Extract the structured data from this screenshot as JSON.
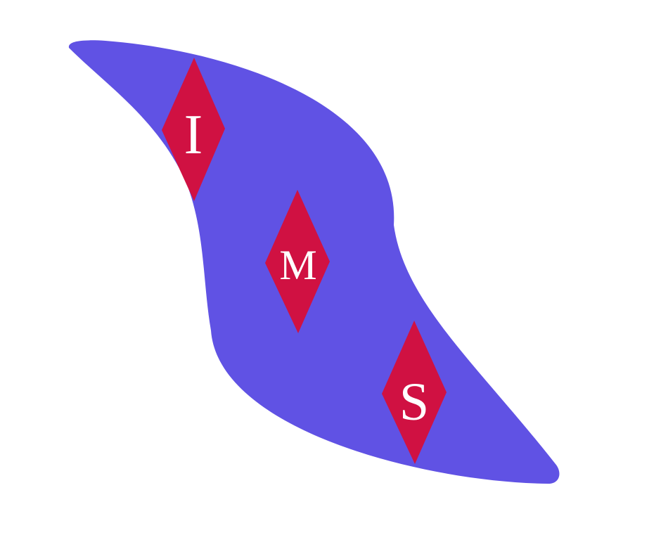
{
  "logo": {
    "letters": {
      "first": "I",
      "second": "M",
      "third": "S"
    },
    "colors": {
      "swoosh": "#6052E4",
      "diamond": "#D01142",
      "letter": "#FFFFFF",
      "background": "#FFFFFF"
    }
  }
}
